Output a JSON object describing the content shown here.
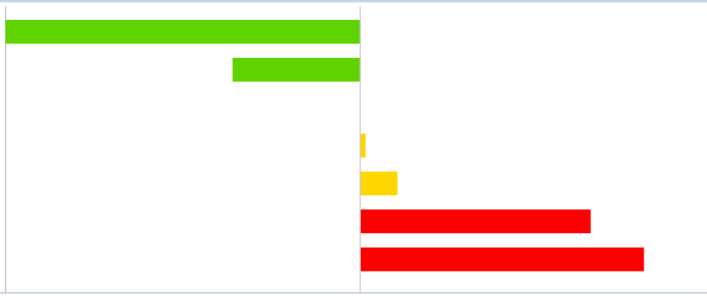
{
  "chart_data": {
    "type": "bar",
    "orientation": "horizontal",
    "title": "",
    "xlabel": "",
    "ylabel": "",
    "grid": false,
    "legend": "none",
    "xlim": [
      -100,
      100
    ],
    "bars": [
      {
        "value": -100,
        "color": "#5fd300"
      },
      {
        "value": -36,
        "color": "#5fd300"
      },
      {
        "value": 0,
        "color": "#ffffff"
      },
      {
        "value": 1.5,
        "color": "#ffd700"
      },
      {
        "value": 10.5,
        "color": "#ffd700"
      },
      {
        "value": 65,
        "color": "#ff0000"
      },
      {
        "value": 80,
        "color": "#ff0000"
      }
    ]
  },
  "colors": {
    "positive_good": "#5fd300",
    "warning": "#ffd700",
    "negative_bad": "#ff0000",
    "axis": "#c8c8c8",
    "frame_border": "#c5d3e6"
  }
}
